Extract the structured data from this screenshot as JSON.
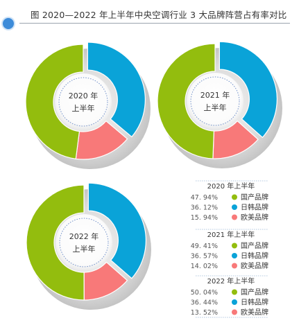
{
  "header": {
    "title": "图  2020—2022 年上半年中央空调行业 3 大品牌阵营占有率对比"
  },
  "colors": {
    "国产品牌": "#93bd0e",
    "日韩品牌": "#0aa3d8",
    "欧美品牌": "#f87979",
    "accent": "#3c8bd9"
  },
  "chart_data": [
    {
      "type": "pie",
      "center_label": [
        "2020 年",
        "上半年"
      ],
      "legend_title": "2020 年上半年",
      "categories": [
        "国产品牌",
        "日韩品牌",
        "欧美品牌"
      ],
      "values": [
        47.94,
        36.12,
        15.94
      ],
      "value_labels": [
        "47. 94%",
        "36. 12%",
        "15. 94%"
      ]
    },
    {
      "type": "pie",
      "center_label": [
        "2021 年",
        "上半年"
      ],
      "legend_title": "2021 年上半年",
      "categories": [
        "国产品牌",
        "日韩品牌",
        "欧美品牌"
      ],
      "values": [
        49.41,
        36.57,
        14.02
      ],
      "value_labels": [
        "49. 41%",
        "36. 57%",
        "14. 02%"
      ]
    },
    {
      "type": "pie",
      "center_label": [
        "2022 年",
        "上半年"
      ],
      "legend_title": "2022 年上半年",
      "categories": [
        "国产品牌",
        "日韩品牌",
        "欧美品牌"
      ],
      "values": [
        50.04,
        36.44,
        13.52
      ],
      "value_labels": [
        "50. 04%",
        "36. 44%",
        "13. 52%"
      ]
    }
  ]
}
